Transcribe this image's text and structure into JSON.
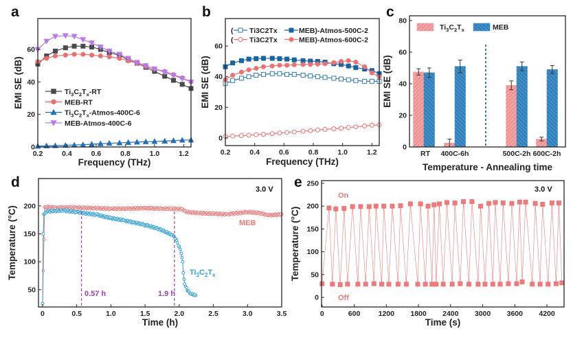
{
  "chart_data": [
    {
      "panel_label": "a",
      "type": "line",
      "xlabel": "Frequency (THz)",
      "ylabel": "EMI SE (dB)",
      "xlim": [
        0.2,
        1.25
      ],
      "ylim": [
        0,
        79
      ],
      "xticks": [
        "0.2",
        "0.4",
        "0.6",
        "0.8",
        "1.0",
        "1.2"
      ],
      "yticks": [
        "0",
        "20",
        "40",
        "60"
      ],
      "grid": false,
      "legend_placement": "center-left",
      "x": [
        0.2,
        0.26,
        0.32,
        0.39,
        0.45,
        0.51,
        0.57,
        0.63,
        0.69,
        0.76,
        0.82,
        0.88,
        0.94,
        1.0,
        1.07,
        1.13,
        1.19,
        1.25
      ],
      "series": [
        {
          "name": "Ti3C2Tx-RT",
          "color": "#4a4a4a",
          "marker": "square",
          "filled": true,
          "values": [
            51,
            56,
            59,
            61,
            62,
            62,
            61.5,
            60,
            58,
            56.5,
            53.5,
            51.5,
            49,
            46.5,
            43.5,
            41,
            38.5,
            36
          ]
        },
        {
          "name": "MEB-RT",
          "color": "#f06c6c",
          "marker": "circle",
          "filled": true,
          "values": [
            52.5,
            54.5,
            56,
            56.5,
            57,
            57,
            56.5,
            56,
            55.5,
            54.5,
            53,
            51.5,
            49.5,
            48,
            46.5,
            44.5,
            42.5,
            40
          ]
        },
        {
          "name": "Ti3C2Tx-Atmos-400C-6",
          "color": "#1f6fc0",
          "marker": "triangle-up",
          "filled": true,
          "values": [
            0.5,
            0.7,
            0.8,
            1,
            1.2,
            1.4,
            1.7,
            2,
            2.3,
            2.5,
            2.8,
            3,
            3.2,
            3.4,
            3.6,
            3.9,
            4.2,
            4.3
          ]
        },
        {
          "name": "MEB-Atmos-400C-6",
          "color": "#b77af0",
          "marker": "triangle-down",
          "filled": true,
          "values": [
            60,
            65,
            68,
            68.5,
            68,
            66,
            64,
            61.5,
            59,
            57,
            54.5,
            52,
            50,
            48,
            46,
            44,
            42,
            40
          ]
        }
      ]
    },
    {
      "panel_label": "b",
      "type": "line",
      "xlabel": "Frequency (THz)",
      "ylabel": "EMI SE (dB)",
      "xlim": [
        0.2,
        1.25
      ],
      "ylim": [
        -5,
        78
      ],
      "xticks": [
        "0.2",
        "0.4",
        "0.6",
        "0.8",
        "1.0",
        "1.2"
      ],
      "yticks": [
        "0",
        "20",
        "40",
        "60"
      ],
      "grid": false,
      "legend_placement": "top",
      "legend": [
        {
          "open": "(",
          "first": "Ti3C2Tx",
          "second": "MEB)-Atmos-500C-2"
        },
        {
          "open": "(",
          "first": "Ti3C2Tx",
          "second": "MEB)-Atmos-600C-2"
        }
      ],
      "x": [
        0.2,
        0.25,
        0.31,
        0.36,
        0.41,
        0.46,
        0.52,
        0.57,
        0.62,
        0.67,
        0.73,
        0.78,
        0.83,
        0.88,
        0.94,
        0.99,
        1.04,
        1.09,
        1.15,
        1.2,
        1.25
      ],
      "series": [
        {
          "legend_row": 0,
          "color": "#2a7ab8",
          "marker": "square",
          "filled": false,
          "values": [
            35.5,
            37.5,
            39,
            40,
            41,
            41.5,
            42,
            42,
            41.5,
            41.5,
            41,
            40.5,
            40,
            39.5,
            39,
            38.5,
            38,
            37.5,
            37,
            37,
            37
          ]
        },
        {
          "legend_row": 0,
          "color": "#1565a8",
          "marker": "square",
          "filled": true,
          "values": [
            46.5,
            49,
            50.5,
            51.5,
            51.8,
            52,
            52,
            51.8,
            51.5,
            51,
            50.5,
            50.2,
            50,
            49.5,
            48.5,
            48,
            47,
            46,
            45,
            44,
            42
          ]
        },
        {
          "legend_row": 1,
          "color": "#f07070",
          "marker": "circle",
          "filled": false,
          "values": [
            1,
            1.2,
            1.5,
            1.8,
            2.1,
            2.4,
            2.8,
            3.2,
            3.6,
            4,
            4.4,
            4.8,
            5.2,
            5.6,
            6,
            6.4,
            6.8,
            7.3,
            7.8,
            8.3,
            8.5
          ]
        },
        {
          "legend_row": 1,
          "color": "#f07070",
          "marker": "circle",
          "filled": true,
          "values": [
            38,
            41,
            43,
            44.5,
            45.5,
            46.5,
            47,
            47.5,
            47.5,
            47.8,
            48,
            48,
            48.2,
            48.5,
            49.2,
            50,
            50.5,
            49.5,
            46.5,
            42.5,
            40
          ]
        }
      ]
    },
    {
      "panel_label": "c",
      "type": "bar",
      "xlabel": "Temperature - Annealing time",
      "ylabel": "EMI SE (dB)",
      "ylim": [
        0,
        83
      ],
      "yticks": [
        "0",
        "20",
        "40",
        "60",
        "80"
      ],
      "grid": false,
      "legend_placement": "top",
      "categories": [
        "RT",
        "400C-6h",
        "500C-2h",
        "600C-2h"
      ],
      "divider": "dashed line between 400C-6h and 500C-2h",
      "series": [
        {
          "name": "Ti3C2Tx",
          "color": "#f4a3a3",
          "hatch": "/",
          "values": [
            47.5,
            2.5,
            39,
            5
          ],
          "errors": [
            2,
            2.5,
            2.8,
            1.2
          ]
        },
        {
          "name": "MEB",
          "color": "#3d8ec9",
          "hatch": "\\",
          "values": [
            47,
            51,
            51,
            49
          ],
          "errors": [
            3,
            4,
            2.8,
            2.5
          ]
        }
      ]
    },
    {
      "panel_label": "d",
      "type": "line",
      "xlabel": "Time (h)",
      "ylabel": "Temperature (°C)",
      "xlim": [
        -0.06,
        3.5
      ],
      "ylim": [
        19,
        249
      ],
      "xticks": [
        "0",
        "0.5",
        "1.0",
        "1.5",
        "2.0",
        "2.5",
        "3.0",
        "3.5"
      ],
      "yticks": [
        "50",
        "100",
        "150",
        "200"
      ],
      "grid": false,
      "annotation_voltage": "3.0 V",
      "vlines": [
        {
          "x": 0.57,
          "label": "0.57 h"
        },
        {
          "x": 1.93,
          "label": "1.9 h"
        }
      ],
      "vline_color": "#a23bc4",
      "series": [
        {
          "name": "MEB",
          "color": "#f07878",
          "marker": "circle",
          "filled": false,
          "x": [
            0,
            0.03,
            0.2,
            0.5,
            0.75,
            1.0,
            1.25,
            1.5,
            1.75,
            1.9,
            2.05,
            2.1,
            2.3,
            2.5,
            2.7,
            3.0,
            3.2,
            3.3,
            3.5
          ],
          "y": [
            25,
            198,
            197,
            197,
            196,
            195,
            195,
            196,
            195,
            195,
            194,
            189,
            187,
            186,
            185,
            189,
            187,
            183,
            185
          ]
        },
        {
          "name": "Ti3C2Tx",
          "color": "#2ea2de",
          "marker": "circle",
          "filled": false,
          "x": [
            0,
            0.01,
            0.02,
            0.05,
            0.3,
            0.5,
            0.8,
            1.0,
            1.2,
            1.5,
            1.7,
            1.9,
            1.95,
            2.0,
            2.03,
            2.05,
            2.06,
            2.08,
            2.12,
            2.18,
            2.24
          ],
          "y": [
            25,
            150,
            185,
            190,
            192,
            189,
            184,
            178,
            174,
            166,
            159,
            148,
            140,
            127,
            115,
            100,
            80,
            60,
            48,
            42,
            40
          ]
        }
      ]
    },
    {
      "panel_label": "e",
      "type": "line",
      "xlabel": "Time (s)",
      "ylabel": "Temperature (°C)",
      "xlim": [
        -10,
        4520
      ],
      "ylim": [
        -21,
        256
      ],
      "xticks": [
        "0",
        "600",
        "1200",
        "1800",
        "2400",
        "3000",
        "3600",
        "4200"
      ],
      "yticks": [
        "0",
        "50",
        "100",
        "150",
        "200",
        "250"
      ],
      "grid": false,
      "annotation_voltage": "3.0 V",
      "label_on": "On",
      "label_off": "Off",
      "series": [
        {
          "color": "#f07878",
          "marker": "square",
          "filled": true,
          "x": [
            0,
            129,
            193,
            257,
            339,
            411,
            476,
            570,
            669,
            720,
            814,
            879,
            969,
            1007,
            1114,
            1153,
            1247,
            1311,
            1419,
            1466,
            1573,
            1650,
            1787,
            1839,
            1929,
            1980,
            2053,
            2091,
            2130,
            2190,
            2263,
            2331,
            2430,
            2481,
            2580,
            2640,
            2743,
            2799,
            2914,
            2961,
            3043,
            3116,
            3189,
            3236,
            3326,
            3381,
            3480,
            3544,
            3634,
            3690,
            3737,
            3802,
            3926,
            3982,
            4072,
            4119,
            4221,
            4294,
            4371,
            4423,
            4479
          ],
          "y": [
            30,
            196,
            29,
            194,
            28,
            195,
            29,
            199,
            29,
            199,
            29,
            199,
            30,
            200,
            29,
            200,
            29,
            200,
            29,
            201,
            29,
            205,
            29,
            205,
            29,
            200,
            29,
            203,
            29,
            205,
            29,
            208,
            29,
            207,
            30,
            210,
            29,
            210,
            29,
            200,
            29,
            206,
            29,
            208,
            29,
            207,
            30,
            206,
            30,
            209,
            34,
            209,
            29,
            206,
            29,
            204,
            29,
            207,
            30,
            207,
            32
          ]
        }
      ]
    }
  ]
}
